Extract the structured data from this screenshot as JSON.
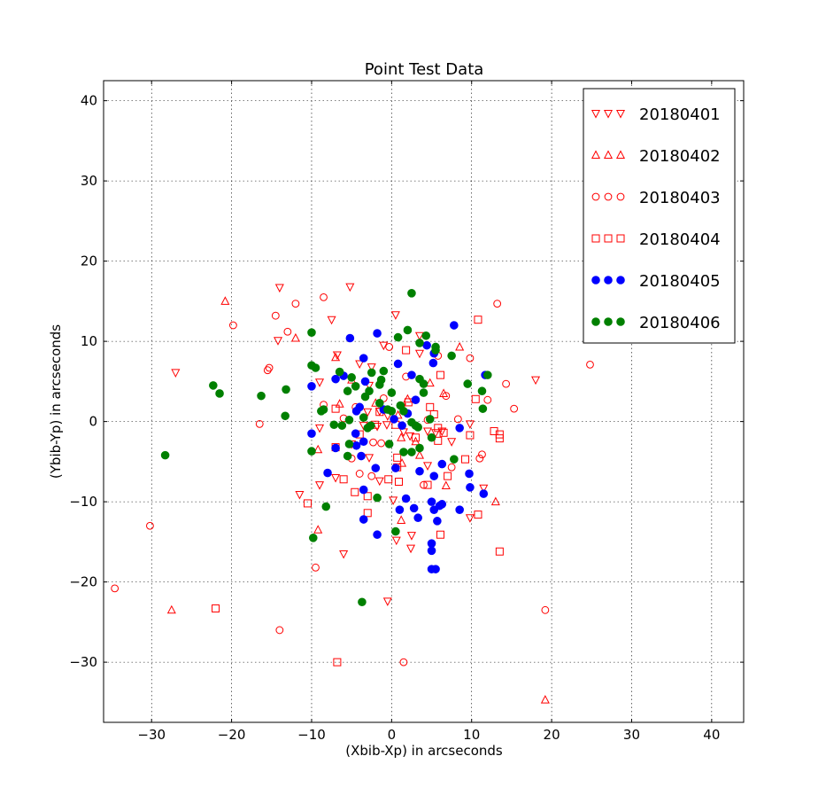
{
  "chart_data": {
    "type": "scatter",
    "title": "Point Test Data",
    "xlabel": "(Xbib-Xp) in arcseconds",
    "ylabel": "(Ybib-Yp) in arcseconds",
    "xlim": [
      -36,
      44
    ],
    "ylim": [
      -37.5,
      42.5
    ],
    "xticks": [
      -30,
      -20,
      -10,
      0,
      10,
      20,
      30,
      40
    ],
    "yticks": [
      -30,
      -20,
      -10,
      0,
      10,
      20,
      30,
      40
    ],
    "grid": true,
    "legend_position": "top-right",
    "series": [
      {
        "name": "20180401",
        "marker": "triangle-down",
        "filled": false,
        "color": "#ff0000",
        "points": [
          [
            -14,
            16.7
          ],
          [
            -5.2,
            16.8
          ],
          [
            0.5,
            13.3
          ],
          [
            -7.5,
            12.7
          ],
          [
            -14.2,
            10.1
          ],
          [
            -6.8,
            8.3
          ],
          [
            -4,
            7.2
          ],
          [
            -2.5,
            6.8
          ],
          [
            -1,
            9.5
          ],
          [
            3.5,
            10.7
          ],
          [
            3.5,
            8.5
          ],
          [
            -27,
            6.1
          ],
          [
            -9,
            4.9
          ],
          [
            -2.8,
            4.5
          ],
          [
            -3,
            1.2
          ],
          [
            -1.5,
            1.3
          ],
          [
            -0.5,
            0.7
          ],
          [
            1.3,
            1.8
          ],
          [
            -3.5,
            -0.5
          ],
          [
            -1.8,
            -0.6
          ],
          [
            -0.6,
            -0.4
          ],
          [
            -9,
            -0.8
          ],
          [
            2.3,
            -1.8
          ],
          [
            4.5,
            -1.2
          ],
          [
            5.5,
            -1.4
          ],
          [
            6.3,
            -1.2
          ],
          [
            7.5,
            -2.5
          ],
          [
            9.8,
            -0.3
          ],
          [
            -5,
            -2.8
          ],
          [
            -2.8,
            -4.5
          ],
          [
            -1.5,
            -7.4
          ],
          [
            -7,
            -7
          ],
          [
            -9,
            -7.9
          ],
          [
            -11.5,
            -9.1
          ],
          [
            0.2,
            -9.8
          ],
          [
            0.6,
            -14.8
          ],
          [
            2.5,
            -14.2
          ],
          [
            2.4,
            -15.8
          ],
          [
            -6,
            -16.5
          ],
          [
            -0.5,
            -22.4
          ],
          [
            9.8,
            -12
          ],
          [
            11.5,
            -8.3
          ],
          [
            18,
            5.2
          ],
          [
            1.5,
            -1.3
          ],
          [
            4.5,
            -5.5
          ]
        ]
      },
      {
        "name": "20180402",
        "marker": "triangle-up",
        "filled": false,
        "color": "#ff0000",
        "points": [
          [
            -20.8,
            15
          ],
          [
            -12,
            10.4
          ],
          [
            -7,
            8
          ],
          [
            -6.5,
            2.2
          ],
          [
            -5,
            5.2
          ],
          [
            -9.2,
            -3.5
          ],
          [
            -2,
            2.3
          ],
          [
            2,
            2.8
          ],
          [
            4.8,
            4.8
          ],
          [
            8.5,
            9.3
          ],
          [
            6.5,
            3.5
          ],
          [
            0.8,
            0.8
          ],
          [
            1.2,
            -2
          ],
          [
            3,
            -2.5
          ],
          [
            1.3,
            -5.2
          ],
          [
            3.5,
            -4.2
          ],
          [
            6.8,
            -8
          ],
          [
            1.2,
            -12.3
          ],
          [
            -9.2,
            -13.5
          ],
          [
            13,
            -10
          ],
          [
            -27.5,
            -23.5
          ],
          [
            19.2,
            -34.7
          ]
        ]
      },
      {
        "name": "20180403",
        "marker": "circle",
        "filled": false,
        "color": "#ff0000",
        "points": [
          [
            -8.5,
            15.5
          ],
          [
            -12,
            14.7
          ],
          [
            -14.5,
            13.2
          ],
          [
            -13,
            11.2
          ],
          [
            -19.8,
            12
          ],
          [
            -15.3,
            6.7
          ],
          [
            -15.5,
            6.4
          ],
          [
            -0.3,
            9.3
          ],
          [
            9.8,
            7.9
          ],
          [
            13.2,
            14.7
          ],
          [
            14.3,
            4.7
          ],
          [
            12,
            2.7
          ],
          [
            15.3,
            1.6
          ],
          [
            24.8,
            7.1
          ],
          [
            -8.5,
            2.1
          ],
          [
            -6,
            0.4
          ],
          [
            -4.5,
            1.8
          ],
          [
            -1,
            2.9
          ],
          [
            1.8,
            5.6
          ],
          [
            5.8,
            8.2
          ],
          [
            6.8,
            3.2
          ],
          [
            -16.5,
            -0.3
          ],
          [
            -2.3,
            -2.6
          ],
          [
            -1.3,
            -2.7
          ],
          [
            -5,
            -4.6
          ],
          [
            -4,
            -6.5
          ],
          [
            -2.5,
            -6.8
          ],
          [
            4,
            -7.9
          ],
          [
            7.5,
            -5.7
          ],
          [
            11,
            -4.6
          ],
          [
            11.3,
            -4.1
          ],
          [
            8.3,
            0.3
          ],
          [
            4.5,
            0.2
          ],
          [
            -30.2,
            -13
          ],
          [
            -34.6,
            -20.8
          ],
          [
            -9.5,
            -18.2
          ],
          [
            -14,
            -26
          ],
          [
            1.5,
            -30
          ],
          [
            19.2,
            -23.5
          ]
        ]
      },
      {
        "name": "20180404",
        "marker": "square",
        "filled": false,
        "color": "#ff0000",
        "points": [
          [
            -7,
            1.6
          ],
          [
            -4,
            -1.6
          ],
          [
            -7,
            -3.2
          ],
          [
            -1.5,
            1.2
          ],
          [
            -2.1,
            -0.4
          ],
          [
            0.5,
            -0.4
          ],
          [
            1.8,
            8.9
          ],
          [
            2.1,
            2.4
          ],
          [
            4.8,
            1.8
          ],
          [
            5.3,
            0.9
          ],
          [
            6.1,
            5.8
          ],
          [
            5.8,
            -0.8
          ],
          [
            6.5,
            -1.4
          ],
          [
            3,
            -2
          ],
          [
            5.8,
            -2.4
          ],
          [
            0.7,
            -4.5
          ],
          [
            0.7,
            -5.7
          ],
          [
            -0.4,
            -7.2
          ],
          [
            0.9,
            -7.5
          ],
          [
            -3,
            -9.3
          ],
          [
            -4.6,
            -8.8
          ],
          [
            -6,
            -7.2
          ],
          [
            -10.5,
            -10.2
          ],
          [
            -3,
            -11.4
          ],
          [
            4.5,
            -7.9
          ],
          [
            7,
            -6.8
          ],
          [
            9.2,
            -4.7
          ],
          [
            9.8,
            -1.7
          ],
          [
            10.5,
            2.8
          ],
          [
            10.8,
            12.7
          ],
          [
            12.8,
            -1.2
          ],
          [
            13.5,
            -1.6
          ],
          [
            13.5,
            -2.1
          ],
          [
            10.8,
            -11.6
          ],
          [
            13.5,
            -16.2
          ],
          [
            6.1,
            -14.1
          ],
          [
            -22,
            -23.3
          ],
          [
            -6.8,
            -30
          ]
        ]
      },
      {
        "name": "20180405",
        "marker": "circle",
        "filled": true,
        "color": "#0000ff",
        "points": [
          [
            -5.2,
            10.4
          ],
          [
            -1.8,
            11
          ],
          [
            7.8,
            12
          ],
          [
            4.4,
            9.5
          ],
          [
            5.3,
            8.5
          ],
          [
            5.2,
            7.3
          ],
          [
            0.8,
            7.2
          ],
          [
            2.5,
            5.8
          ],
          [
            11.7,
            5.8
          ],
          [
            -3.5,
            7.9
          ],
          [
            -3.3,
            5
          ],
          [
            -6,
            5.7
          ],
          [
            -7,
            5.3
          ],
          [
            -10,
            4.4
          ],
          [
            -4,
            1.8
          ],
          [
            -4.4,
            1.3
          ],
          [
            -1,
            1.5
          ],
          [
            2,
            1
          ],
          [
            0.3,
            0.3
          ],
          [
            1.3,
            -0.5
          ],
          [
            3,
            2.7
          ],
          [
            -10,
            -1.5
          ],
          [
            -4.5,
            -1.5
          ],
          [
            -3.5,
            -2.5
          ],
          [
            -4.4,
            -3
          ],
          [
            -7,
            -3.3
          ],
          [
            8.5,
            -0.8
          ],
          [
            0.5,
            -5.8
          ],
          [
            3.5,
            -6.2
          ],
          [
            5.3,
            -6.8
          ],
          [
            6.3,
            -5.3
          ],
          [
            9.7,
            -6.5
          ],
          [
            9.8,
            -8.2
          ],
          [
            11.5,
            -9
          ],
          [
            -3.8,
            -4.3
          ],
          [
            -2,
            -5.8
          ],
          [
            -3.5,
            -8.5
          ],
          [
            -8,
            -6.4
          ],
          [
            1.8,
            -9.6
          ],
          [
            5,
            -10
          ],
          [
            6.3,
            -10.3
          ],
          [
            6,
            -10.5
          ],
          [
            5.3,
            -11
          ],
          [
            2.8,
            -10.8
          ],
          [
            1,
            -11
          ],
          [
            8.5,
            -11
          ],
          [
            3.3,
            -12
          ],
          [
            5.7,
            -12.4
          ],
          [
            -3.5,
            -12.2
          ],
          [
            -1.8,
            -14.1
          ],
          [
            5,
            -15.2
          ],
          [
            5,
            -16.1
          ],
          [
            5,
            -18.4
          ],
          [
            5.5,
            -18.4
          ]
        ]
      },
      {
        "name": "20180406",
        "marker": "circle",
        "filled": true,
        "color": "#008000",
        "points": [
          [
            2.5,
            16
          ],
          [
            -10,
            11.1
          ],
          [
            2,
            11.4
          ],
          [
            0.8,
            10.5
          ],
          [
            4.3,
            10.7
          ],
          [
            3.5,
            9.8
          ],
          [
            5.5,
            9.3
          ],
          [
            5.5,
            8.9
          ],
          [
            7.5,
            8.2
          ],
          [
            -10,
            7
          ],
          [
            -9.5,
            6.7
          ],
          [
            -6.5,
            6.2
          ],
          [
            -2.5,
            6.1
          ],
          [
            -1,
            6.3
          ],
          [
            -1.3,
            5.2
          ],
          [
            -1.5,
            4.6
          ],
          [
            -4.5,
            4.4
          ],
          [
            -5,
            5.5
          ],
          [
            -5.5,
            3.8
          ],
          [
            -3.3,
            3.1
          ],
          [
            -2.8,
            3.8
          ],
          [
            0,
            3.6
          ],
          [
            1.1,
            2
          ],
          [
            3.5,
            5.3
          ],
          [
            4,
            4.7
          ],
          [
            4,
            3.6
          ],
          [
            9.5,
            4.7
          ],
          [
            11.3,
            3.8
          ],
          [
            12,
            5.8
          ],
          [
            11.4,
            1.6
          ],
          [
            -22.3,
            4.5
          ],
          [
            -21.5,
            3.5
          ],
          [
            -16.3,
            3.2
          ],
          [
            -13.2,
            4
          ],
          [
            -13.3,
            0.7
          ],
          [
            -8.8,
            1.3
          ],
          [
            -8.5,
            1.5
          ],
          [
            -7.2,
            -0.4
          ],
          [
            -6.2,
            -0.5
          ],
          [
            -5.3,
            0.2
          ],
          [
            -3.5,
            0.5
          ],
          [
            -3,
            -0.8
          ],
          [
            -2.6,
            -0.5
          ],
          [
            -1.5,
            2.3
          ],
          [
            -0.5,
            1.5
          ],
          [
            0,
            1.3
          ],
          [
            1.5,
            1.3
          ],
          [
            2.5,
            -0.1
          ],
          [
            3,
            -0.5
          ],
          [
            4.8,
            0.3
          ],
          [
            3.3,
            -0.7
          ],
          [
            -0.3,
            -2.8
          ],
          [
            1.5,
            -3.8
          ],
          [
            2.5,
            -3.8
          ],
          [
            3.5,
            -3.3
          ],
          [
            5,
            -2
          ],
          [
            7.8,
            -4.7
          ],
          [
            -10,
            -3.7
          ],
          [
            -5.5,
            -4.3
          ],
          [
            -5.3,
            -2.8
          ],
          [
            -9.8,
            -14.5
          ],
          [
            -8.2,
            -10.6
          ],
          [
            -1.8,
            -9.5
          ],
          [
            0.5,
            -13.7
          ],
          [
            -28.3,
            -4.2
          ],
          [
            -3.7,
            -22.5
          ]
        ]
      }
    ]
  }
}
